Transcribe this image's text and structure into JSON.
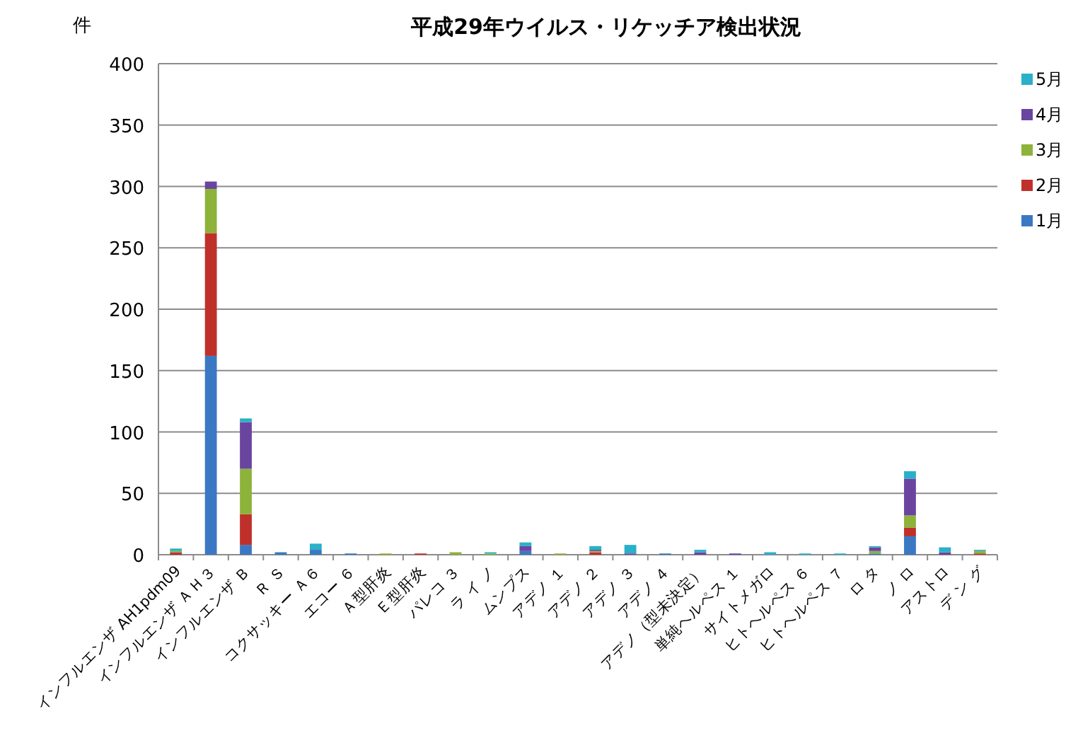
{
  "chart_data": {
    "type": "bar",
    "stacked": true,
    "title": "平成29年ウイルス・リケッチア検出状況",
    "ylabel": "件",
    "categories": [
      "インフルエンザ AH1pdm09",
      "インフルエンザ ＡＨ３",
      "インフルエンザ Ｂ",
      "Ｒ Ｓ",
      "コクサッキー Ａ６",
      "エコー ６",
      "Ａ型肝炎",
      "Ｅ型肝炎",
      "パレコ ３",
      "ラ イ ノ",
      "ムンプス",
      "アデノ １",
      "アデノ ２",
      "アデノ ３",
      "アデノ ４",
      "アデノ（型未決定）",
      "単純ヘルペス １",
      "サイトメガロ",
      "ヒトヘルペス ６",
      "ヒトヘルペス ７",
      "ロ タ",
      "ノ ロ",
      "アストロ",
      "デ ン グ"
    ],
    "series": [
      {
        "name": "1月",
        "color": "#3a78c4",
        "values": [
          0,
          162,
          8,
          2,
          4,
          1,
          0,
          0,
          0,
          0,
          3,
          0,
          0,
          0,
          1,
          0,
          0,
          0,
          0,
          0,
          1,
          15,
          0,
          0
        ]
      },
      {
        "name": "2月",
        "color": "#c0302a",
        "values": [
          2,
          100,
          25,
          0,
          0,
          0,
          0,
          1,
          0,
          0,
          0,
          0,
          2,
          0,
          0,
          0,
          0,
          0,
          0,
          0,
          0,
          7,
          0,
          1
        ]
      },
      {
        "name": "3月",
        "color": "#8db33a",
        "values": [
          1,
          36,
          37,
          0,
          0,
          0,
          1,
          0,
          2,
          1,
          0,
          1,
          1,
          0,
          0,
          0,
          0,
          0,
          0,
          0,
          2,
          10,
          0,
          2
        ]
      },
      {
        "name": "4月",
        "color": "#6a45a0",
        "values": [
          0,
          6,
          38,
          0,
          0,
          0,
          0,
          0,
          0,
          0,
          4,
          0,
          1,
          1,
          0,
          2,
          1,
          0,
          0,
          0,
          3,
          30,
          2,
          0
        ]
      },
      {
        "name": "5月",
        "color": "#2ab0c8",
        "values": [
          2,
          0,
          3,
          0,
          5,
          0,
          0,
          0,
          0,
          1,
          3,
          0,
          3,
          7,
          0,
          2,
          0,
          2,
          1,
          1,
          1,
          6,
          4,
          1
        ]
      }
    ],
    "ylim": [
      0,
      400
    ],
    "yticks": [
      0,
      50,
      100,
      150,
      200,
      250,
      300,
      350,
      400
    ],
    "grid": "y",
    "legend": "right"
  }
}
